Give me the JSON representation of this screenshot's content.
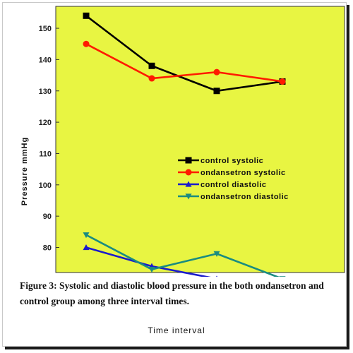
{
  "chart_data": {
    "type": "line",
    "x": [
      1,
      2,
      3,
      4
    ],
    "series": [
      {
        "name": "control systolic",
        "color": "#000000",
        "marker": "square",
        "values": [
          154,
          138,
          130,
          133
        ]
      },
      {
        "name": "ondansetron systolic",
        "color": "#ff1a00",
        "marker": "circle",
        "values": [
          145,
          134,
          136,
          133
        ]
      },
      {
        "name": "control diastolic",
        "color": "#1a1acc",
        "marker": "triangle-up",
        "values": [
          80,
          74,
          70,
          null
        ]
      },
      {
        "name": "ondansetron diastolic",
        "color": "#1a8c80",
        "marker": "triangle-down",
        "values": [
          84,
          73,
          78,
          70
        ]
      }
    ],
    "ylabel": "Pressure mmHg",
    "xlabel": "Time interval",
    "ylim": [
      72,
      157
    ],
    "yticks": [
      "80",
      "90",
      "100",
      "110",
      "120",
      "130",
      "140",
      "150"
    ],
    "plot_background": "#e8f542",
    "legend_position": "center-right"
  },
  "caption": "Figure 3: Systolic and diastolic blood pressure in the both ondansetron and control group among three interval times."
}
